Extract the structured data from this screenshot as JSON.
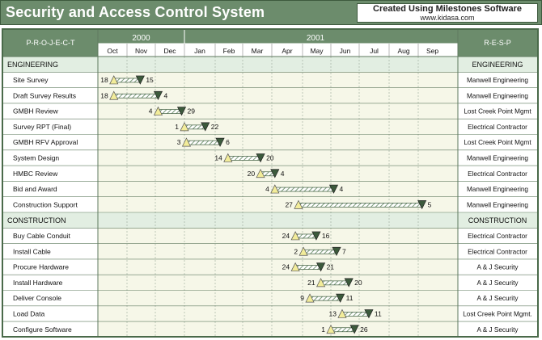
{
  "title": "Security and Access Control System",
  "credit": {
    "main": "Created Using Milestones Software",
    "url": "www.kidasa.com"
  },
  "colors": {
    "header_bg": "#6c8c6c",
    "section_bg": "#e2eee2",
    "timeline_bg": "#f6f7e8",
    "start_marker": "#f2ec9a",
    "end_marker": "#3c5a3c",
    "bar": "#7a9a7a"
  },
  "chart_data": {
    "type": "gantt",
    "project_header": "P-R-O-J-E-C-T",
    "resp_header": "R-E-S-P",
    "years": [
      {
        "label": "2000",
        "months": 3
      },
      {
        "label": "2001",
        "months": 9
      }
    ],
    "months": [
      "Oct",
      "Nov",
      "Dec",
      "Jan",
      "Feb",
      "Mar",
      "Apr",
      "May",
      "Jun",
      "Jul",
      "Aug",
      "Sep"
    ],
    "rows": [
      {
        "kind": "section",
        "name": "ENGINEERING",
        "resp": "ENGINEERING"
      },
      {
        "kind": "task",
        "name": "Site Survey",
        "resp": "Manwell Engineering",
        "start": "2000-10-18",
        "end": "2000-11-15",
        "start_label": "18",
        "end_label": "15"
      },
      {
        "kind": "task",
        "name": "Draft Survey Results",
        "resp": "Manwell Engineering",
        "start": "2000-10-18",
        "end": "2000-12-04",
        "start_label": "18",
        "end_label": "4"
      },
      {
        "kind": "task",
        "name": "GMBH Review",
        "resp": "Lost Creek Point Mgmt",
        "start": "2000-12-04",
        "end": "2000-12-29",
        "start_label": "4",
        "end_label": "29"
      },
      {
        "kind": "task",
        "name": "Survey RPT (Final)",
        "resp": "Electrical Contractor",
        "start": "2001-01-01",
        "end": "2001-01-22",
        "start_label": "1",
        "end_label": "22"
      },
      {
        "kind": "task",
        "name": "GMBH RFV Approval",
        "resp": "Lost Creek Point Mgmt",
        "start": "2001-01-03",
        "end": "2001-02-06",
        "start_label": "3",
        "end_label": "6"
      },
      {
        "kind": "task",
        "name": "System Design",
        "resp": "Manwell Engineering",
        "start": "2001-02-14",
        "end": "2001-03-20",
        "start_label": "14",
        "end_label": "20"
      },
      {
        "kind": "task",
        "name": "HMBC Review",
        "resp": "Electrical Contractor",
        "start": "2001-03-20",
        "end": "2001-04-04",
        "start_label": "20",
        "end_label": "4"
      },
      {
        "kind": "task",
        "name": "Bid and Award",
        "resp": "Manwell Engineering",
        "start": "2001-04-04",
        "end": "2001-06-04",
        "start_label": "4",
        "end_label": "4"
      },
      {
        "kind": "task",
        "name": "Construction Support",
        "resp": "Manwell Engineering",
        "start": "2001-04-27",
        "end": "2001-09-05",
        "start_label": "27",
        "end_label": "5"
      },
      {
        "kind": "section",
        "name": "CONSTRUCTION",
        "resp": "CONSTRUCTION"
      },
      {
        "kind": "task",
        "name": "Buy Cable Conduit",
        "resp": "Electrical Contractor",
        "start": "2001-04-24",
        "end": "2001-05-16",
        "start_label": "24",
        "end_label": "16"
      },
      {
        "kind": "task",
        "name": "Install Cable",
        "resp": "Electrical Contractor",
        "start": "2001-05-02",
        "end": "2001-06-07",
        "start_label": "2",
        "end_label": "7"
      },
      {
        "kind": "task",
        "name": "Procure Hardware",
        "resp": "A & J Security",
        "start": "2001-04-24",
        "end": "2001-05-21",
        "start_label": "24",
        "end_label": "21"
      },
      {
        "kind": "task",
        "name": "Install Hardware",
        "resp": "A & J Security",
        "start": "2001-05-21",
        "end": "2001-06-20",
        "start_label": "21",
        "end_label": "20"
      },
      {
        "kind": "task",
        "name": "Deliver Console",
        "resp": "A & J Security",
        "start": "2001-05-09",
        "end": "2001-06-11",
        "start_label": "9",
        "end_label": "11"
      },
      {
        "kind": "task",
        "name": "Load Data",
        "resp": "Lost Creek Point Mgmt.",
        "start": "2001-06-13",
        "end": "2001-07-11",
        "start_label": "13",
        "end_label": "11"
      },
      {
        "kind": "task",
        "name": "Configure Software",
        "resp": "A & J Security",
        "start": "2001-06-01",
        "end": "2001-06-26",
        "start_label": "1",
        "end_label": "26"
      }
    ]
  }
}
